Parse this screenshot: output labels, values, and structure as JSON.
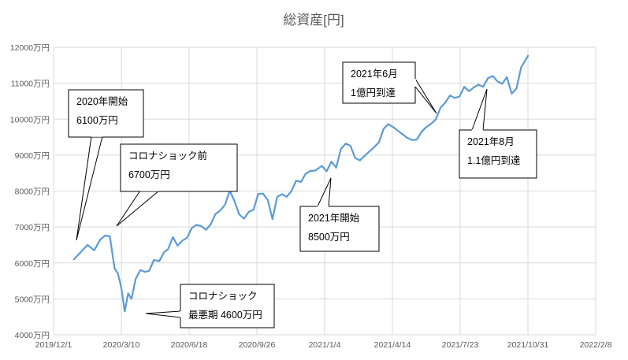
{
  "chart_data": {
    "type": "line",
    "title": "総資産[円]",
    "xlabel": "",
    "ylabel": "",
    "ylim": [
      4000,
      12000
    ],
    "y_ticks": [
      4000,
      5000,
      6000,
      7000,
      8000,
      9000,
      10000,
      11000,
      12000
    ],
    "y_tick_labels": [
      "4000万円",
      "5000万円",
      "6000万円",
      "7000万円",
      "8000万円",
      "9000万円",
      "10000万円",
      "11000万円",
      "12000万円"
    ],
    "x_tick_labels": [
      "2019/12/1",
      "2020/3/10",
      "2020/6/18",
      "2020/9/26",
      "2021/1/4",
      "2021/4/14",
      "2021/7/23",
      "2021/10/31",
      "2022/2/8"
    ],
    "grid": true,
    "legend": "none",
    "colors": {
      "series": "#5b9bd5",
      "grid": "#d9d9d9"
    },
    "series": [
      {
        "x": [
          "2019/12/31",
          "2020/1/10",
          "2020/1/20",
          "2020/1/30",
          "2020/2/8",
          "2020/2/15",
          "2020/2/22",
          "2020/2/29",
          "2020/3/5",
          "2020/3/10",
          "2020/3/15",
          "2020/3/20",
          "2020/3/25",
          "2020/3/31",
          "2020/4/7",
          "2020/4/14",
          "2020/4/20",
          "2020/4/27",
          "2020/5/5",
          "2020/5/12",
          "2020/5/18",
          "2020/5/25",
          "2020/6/1",
          "2020/6/8",
          "2020/6/15",
          "2020/6/22",
          "2020/6/29",
          "2020/7/6",
          "2020/7/13",
          "2020/7/20",
          "2020/7/27",
          "2020/8/3",
          "2020/8/10",
          "2020/8/17",
          "2020/8/24",
          "2020/8/31",
          "2020/9/7",
          "2020/9/14",
          "2020/9/21",
          "2020/9/28",
          "2020/10/5",
          "2020/10/12",
          "2020/10/19",
          "2020/10/26",
          "2020/11/2",
          "2020/11/9",
          "2020/11/16",
          "2020/11/23",
          "2020/11/30",
          "2020/12/7",
          "2020/12/14",
          "2020/12/21",
          "2020/12/31",
          "2021/1/7",
          "2021/1/14",
          "2021/1/21",
          "2021/1/28",
          "2021/2/4",
          "2021/2/11",
          "2021/2/18",
          "2021/2/25",
          "2021/3/4",
          "2021/3/11",
          "2021/3/18",
          "2021/3/25",
          "2021/4/1",
          "2021/4/8",
          "2021/4/15",
          "2021/4/22",
          "2021/4/29",
          "2021/5/6",
          "2021/5/13",
          "2021/5/20",
          "2021/5/27",
          "2021/6/3",
          "2021/6/10",
          "2021/6/17",
          "2021/6/24",
          "2021/7/1",
          "2021/7/8",
          "2021/7/15",
          "2021/7/22",
          "2021/7/29",
          "2021/8/5",
          "2021/8/12",
          "2021/8/19",
          "2021/8/26",
          "2021/9/2",
          "2021/9/9",
          "2021/9/16",
          "2021/9/23",
          "2021/9/30",
          "2021/10/7",
          "2021/10/14",
          "2021/10/21",
          "2021/10/31"
        ],
        "y": [
          6100,
          6300,
          6500,
          6350,
          6650,
          6760,
          6740,
          5850,
          5700,
          5300,
          4650,
          5150,
          5000,
          5550,
          5800,
          5750,
          5780,
          6080,
          6050,
          6300,
          6380,
          6720,
          6480,
          6620,
          6700,
          6970,
          7060,
          7020,
          6920,
          7080,
          7360,
          7460,
          7620,
          8010,
          7720,
          7350,
          7230,
          7420,
          7480,
          7920,
          7930,
          7750,
          7220,
          7840,
          7910,
          7840,
          8000,
          8290,
          8250,
          8480,
          8560,
          8570,
          8700,
          8550,
          8820,
          8650,
          9170,
          9320,
          9260,
          8920,
          8850,
          8980,
          9100,
          9220,
          9350,
          9730,
          9860,
          9780,
          9680,
          9580,
          9480,
          9420,
          9430,
          9650,
          9780,
          9870,
          9990,
          10320,
          10460,
          10660,
          10590,
          10630,
          10900,
          10780,
          10880,
          10960,
          10900,
          11140,
          11200,
          11050,
          10980,
          11170,
          10710,
          10850,
          11440,
          11760
        ]
      }
    ],
    "annotations": [
      {
        "lines": [
          "2020年開始",
          "6100万円"
        ]
      },
      {
        "lines": [
          "コロナショック前",
          "6700万円"
        ]
      },
      {
        "lines": [
          "コロナショック",
          "最悪期 4600万円"
        ]
      },
      {
        "lines": [
          "2021年開始",
          "8500万円"
        ]
      },
      {
        "lines": [
          "2021年6月",
          "1億円到達"
        ]
      },
      {
        "lines": [
          "2021年8月",
          "1.1億円到達"
        ]
      }
    ]
  }
}
